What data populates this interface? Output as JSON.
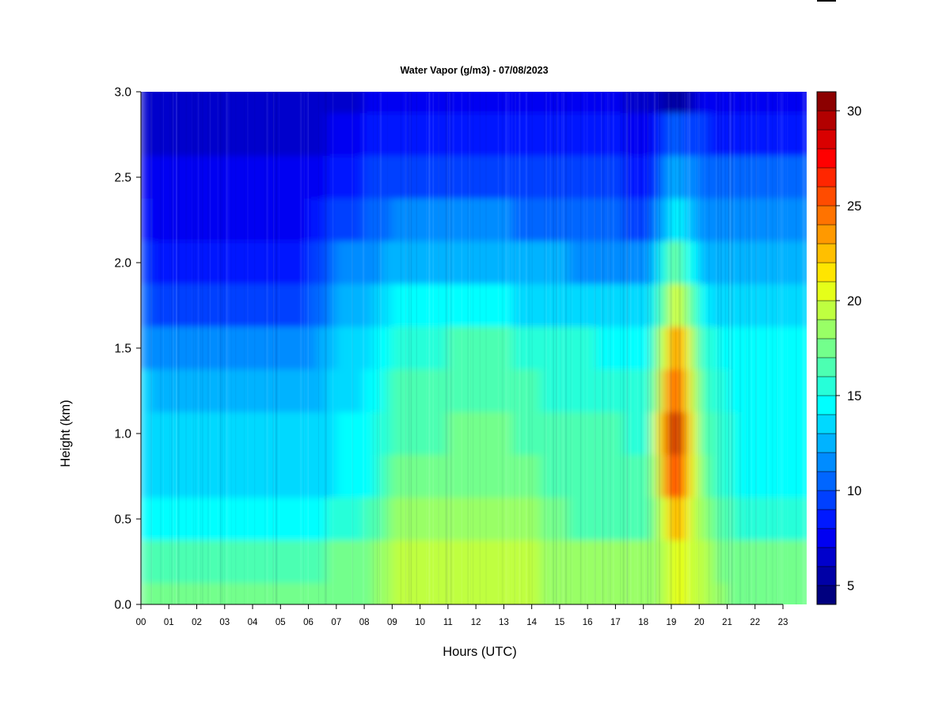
{
  "chart_data": {
    "type": "heatmap",
    "title": "Water Vapor (g/m3) - 07/08/2023",
    "xlabel": "Hours (UTC)",
    "ylabel": "Height (km)",
    "x_ticks": [
      "00",
      "01",
      "02",
      "03",
      "04",
      "05",
      "06",
      "07",
      "08",
      "09",
      "10",
      "11",
      "12",
      "13",
      "14",
      "15",
      "16",
      "17",
      "18",
      "19",
      "20",
      "21",
      "22",
      "23"
    ],
    "xlim": [
      0,
      23.85
    ],
    "y_ticks": [
      "0.0",
      "0.5",
      "1.0",
      "1.5",
      "2.0",
      "2.5",
      "3.0"
    ],
    "ylim": [
      0,
      3.0
    ],
    "colorbar": {
      "range": [
        4,
        31
      ],
      "ticks": [
        "5",
        "10",
        "15",
        "20",
        "25",
        "30"
      ],
      "levels": [
        4,
        5,
        6,
        7,
        8,
        9,
        10,
        11,
        12,
        13,
        14,
        15,
        16,
        17,
        18,
        19,
        20,
        21,
        22,
        23,
        24,
        25,
        26,
        27,
        28,
        29,
        30,
        31
      ],
      "colors": [
        "#00007f",
        "#0000a6",
        "#0000cc",
        "#0000f2",
        "#0019ff",
        "#0040ff",
        "#0066ff",
        "#008cff",
        "#00b3ff",
        "#00d9ff",
        "#00ffff",
        "#26ffd9",
        "#4cffb2",
        "#73ff8c",
        "#99ff66",
        "#bfff40",
        "#e5ff19",
        "#ffe500",
        "#ffbf00",
        "#ff9900",
        "#ff7300",
        "#ff4c00",
        "#ff2600",
        "#ff0000",
        "#d90000",
        "#b20000",
        "#8c0000"
      ]
    },
    "hours": [
      0,
      1,
      2,
      3,
      4,
      5,
      6,
      7,
      8,
      9,
      10,
      11,
      12,
      13,
      14,
      15,
      16,
      17,
      18,
      19,
      20,
      21,
      22,
      23
    ],
    "heights_km": [
      0.0,
      0.25,
      0.5,
      0.75,
      1.0,
      1.25,
      1.5,
      1.75,
      2.0,
      2.25,
      2.5,
      2.75,
      3.0
    ],
    "values": [
      [
        17.5,
        17.5,
        17.5,
        17.5,
        17.5,
        17.5,
        17.5,
        17.5,
        17.8,
        19,
        19,
        19,
        19.5,
        19,
        19,
        18.5,
        18,
        18,
        18,
        20.5,
        19,
        17.5,
        17.5,
        17.5
      ],
      [
        16.5,
        16.5,
        16.5,
        16.5,
        16.5,
        16.5,
        16.5,
        17.5,
        17.5,
        19,
        19,
        19,
        19,
        19,
        19,
        18.5,
        18,
        18,
        18,
        20.5,
        19,
        17,
        17,
        17
      ],
      [
        14.5,
        14.5,
        14.5,
        14.5,
        14.5,
        14.5,
        14.5,
        15.5,
        16,
        18,
        18,
        18,
        18,
        18,
        18,
        17,
        16.5,
        16.5,
        16.5,
        23,
        18,
        16,
        15.5,
        15.5
      ],
      [
        13.5,
        13,
        13,
        13,
        13,
        13,
        13,
        14,
        14.5,
        17,
        17,
        17.5,
        17.5,
        17.5,
        17,
        16,
        16,
        16,
        16,
        27,
        17,
        15,
        14.5,
        14.5
      ],
      [
        13.5,
        13,
        13,
        13,
        13,
        13,
        13,
        14,
        14.5,
        16.5,
        16.5,
        17,
        17,
        17,
        16.5,
        16,
        16,
        16,
        15.5,
        29,
        16.5,
        15,
        14.5,
        14.5
      ],
      [
        13,
        12.5,
        12,
        12,
        12,
        12,
        12.5,
        13.5,
        14,
        16,
        16,
        16.5,
        16.5,
        16.5,
        16,
        15.5,
        15.5,
        15,
        15,
        26,
        16,
        14.5,
        14.5,
        14.5
      ],
      [
        11.5,
        11,
        11,
        11,
        11,
        11,
        11.5,
        13,
        13.5,
        15.5,
        15.5,
        16,
        16,
        16,
        15.5,
        15,
        15,
        14.5,
        14.5,
        24,
        15.5,
        14,
        14,
        14
      ],
      [
        10,
        9.5,
        9.5,
        9.5,
        9.5,
        9.5,
        10,
        12,
        12.5,
        14,
        14,
        14,
        14,
        14,
        13.5,
        13.5,
        13,
        13,
        13,
        20,
        14,
        13,
        13,
        13
      ],
      [
        9,
        8.5,
        8.5,
        8.5,
        8.5,
        8.5,
        9,
        11,
        11.5,
        12.5,
        12.5,
        12.5,
        12.5,
        12.5,
        12,
        12,
        11.5,
        11.5,
        11,
        17,
        12.5,
        12,
        12,
        12
      ],
      [
        8,
        7.5,
        7.5,
        7.5,
        7.5,
        7.5,
        8,
        9.5,
        10,
        11,
        11,
        11,
        11,
        11,
        10.5,
        10.5,
        10,
        10,
        9.5,
        14.5,
        11.5,
        11,
        11,
        11
      ],
      [
        7.5,
        7,
        7,
        7,
        7,
        7,
        7.5,
        8.5,
        9,
        9.5,
        9.5,
        9.5,
        9.5,
        9.5,
        9,
        9,
        9,
        9,
        8.5,
        12.5,
        10.5,
        10,
        10,
        10
      ],
      [
        6.5,
        6.5,
        6.5,
        6.5,
        6.5,
        6.5,
        6.5,
        7.5,
        8,
        8,
        8,
        8,
        8,
        8,
        8,
        8,
        8,
        8,
        7.5,
        10,
        9,
        8.5,
        8.5,
        8.5
      ],
      [
        6.5,
        6.5,
        6.5,
        6.5,
        6.5,
        6.5,
        6.5,
        6.5,
        7,
        7,
        7,
        7,
        7,
        7,
        7,
        7,
        7,
        7,
        6.5,
        5,
        7.5,
        7.5,
        7.5,
        7.5
      ]
    ]
  }
}
